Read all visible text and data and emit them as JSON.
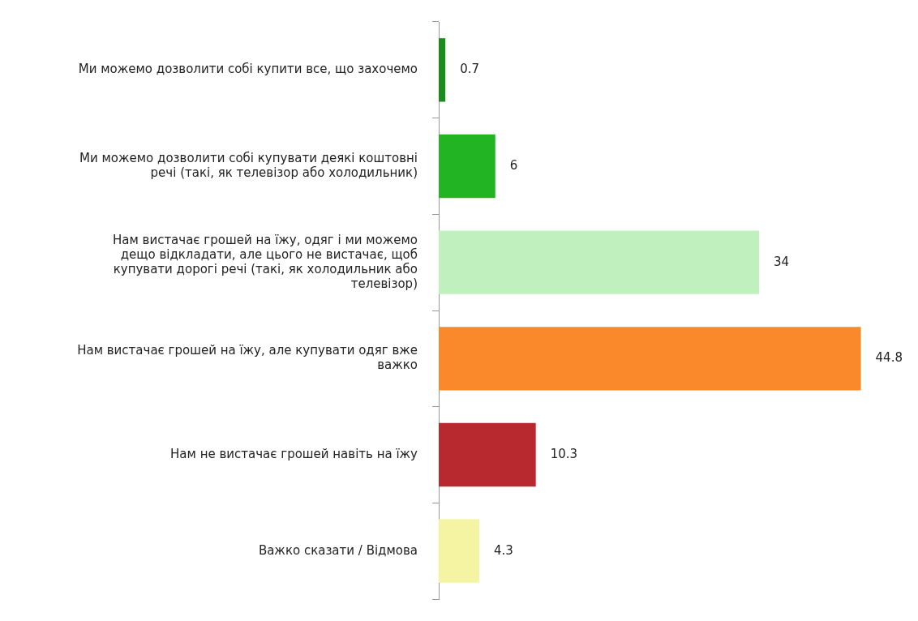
{
  "chart_data": {
    "type": "bar",
    "orientation": "horizontal",
    "data_labels": true,
    "grid": false,
    "legend": false,
    "tick_labels": "y",
    "categories": [
      "Ми можемо дозволити собі купити все, що захочемо",
      "Ми можемо дозволити собі купувати деякі коштовні речі (такі, як телевізор або холодильник)",
      "Нам вистачає грошей на їжу, одяг і ми можемо дещо відкладати, але цього не вистачає, щоб купувати дорогі речі (такі, як холодильник або телевізор)",
      "Нам вистачає грошей на їжу, але купувати одяг вже важко",
      "Нам не вистачає грошей навіть на їжу",
      "Важко сказати / Відмова"
    ],
    "values": [
      0.7,
      6,
      34,
      44.8,
      10.3,
      4.3
    ],
    "colors": [
      "#1a8c1a",
      "#22b422",
      "#bff0bd",
      "#f9892a",
      "#b8282f",
      "#f4f4a2"
    ]
  }
}
